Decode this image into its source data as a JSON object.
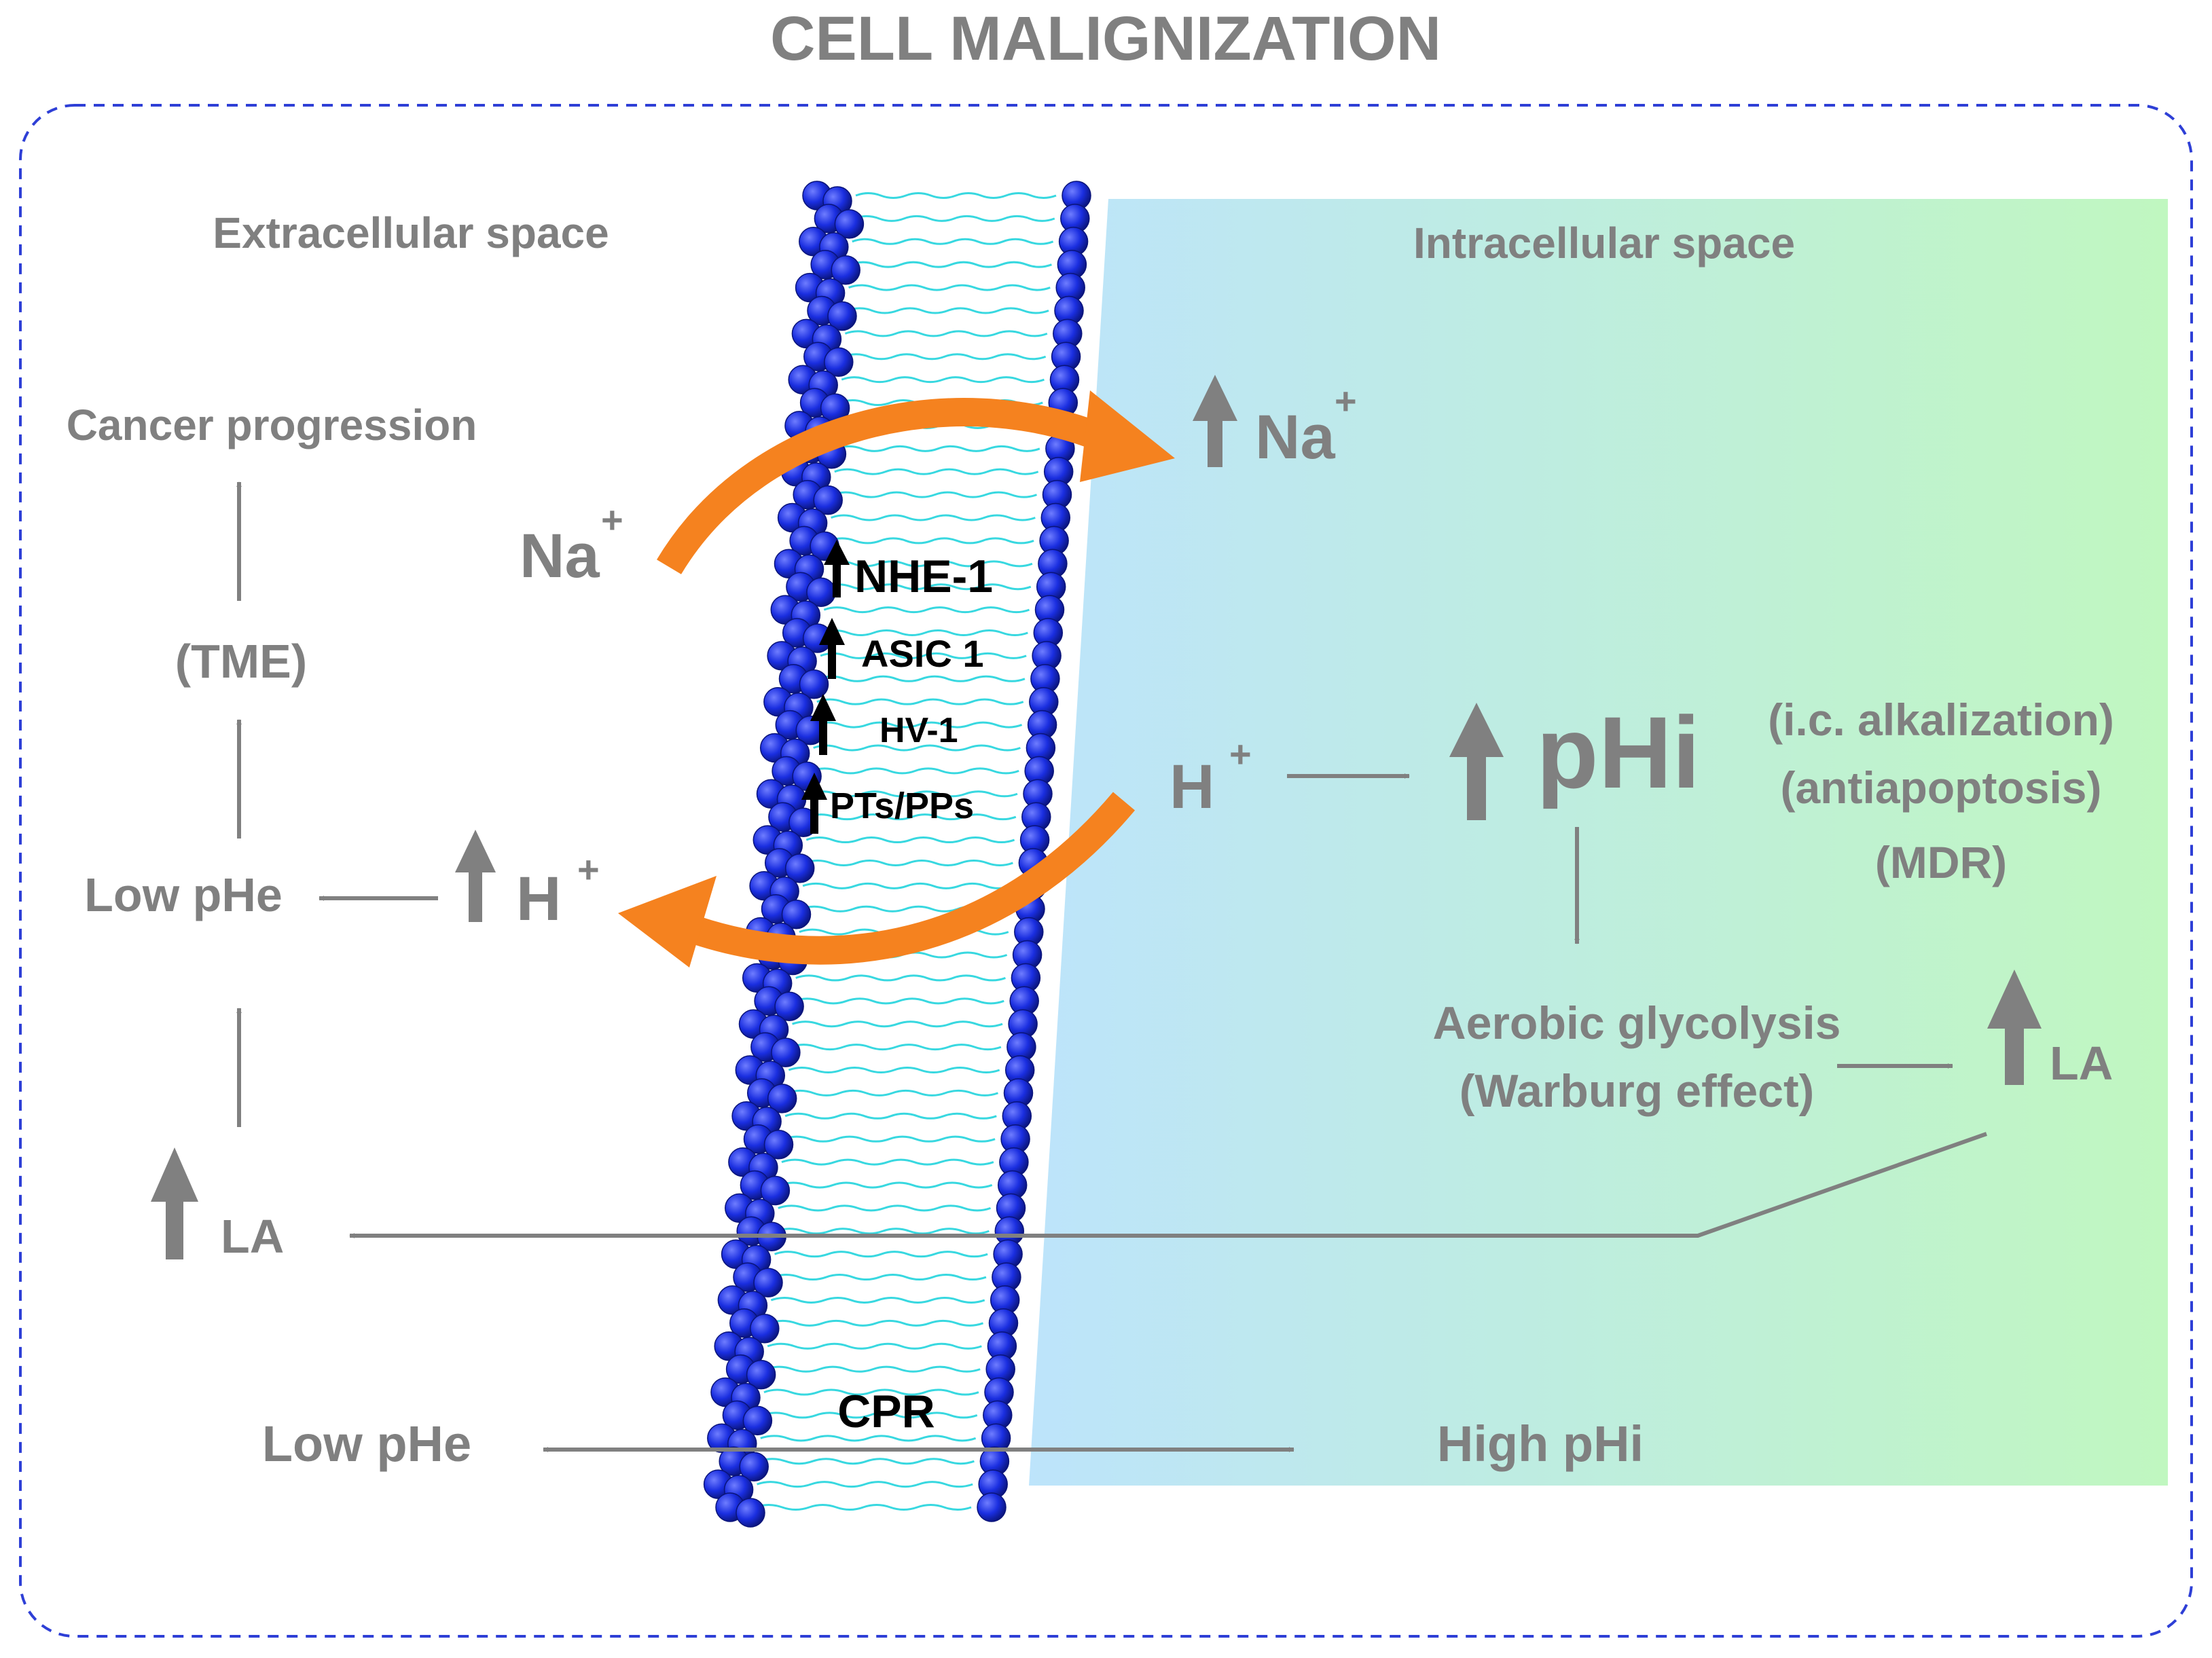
{
  "title": "CELL MALIGNIZATION",
  "extracellular": {
    "heading": "Extracellular space",
    "cancer_progression": "Cancer progression",
    "tme": "(TME)",
    "low_phe_mid": "Low pHe",
    "h_ion": "H",
    "h_sup": "+",
    "la": "LA",
    "na_ion": "Na",
    "na_sup": "+"
  },
  "intracellular": {
    "heading": "Intracellular space",
    "na_ion": "Na",
    "na_sup": "+",
    "h_ion": "H",
    "h_sup": "+",
    "phi": "pHi",
    "alkalization": "(i.c. alkalization)",
    "antiapoptosis": "(antiapoptosis)",
    "mdr": "(MDR)",
    "glycolysis_line1": "Aerobic glycolysis",
    "glycolysis_line2": "(Warburg effect)",
    "la": "LA"
  },
  "membrane": {
    "transporters": [
      "NHE-1",
      "ASIC 1",
      "HV-1",
      "PTs/PPs"
    ],
    "cpr": "CPR"
  },
  "bottom": {
    "low_phe": "Low pHe",
    "high_phi": "High pHi"
  },
  "colors": {
    "gray": "#808080",
    "orange": "#f5821f",
    "lipid_head": "#1a2ee0",
    "lipid_tail": "#38d8e0",
    "gradient_start": "#bde4fb",
    "gradient_end": "#c0f7c0",
    "frame": "#2e3fd6"
  }
}
